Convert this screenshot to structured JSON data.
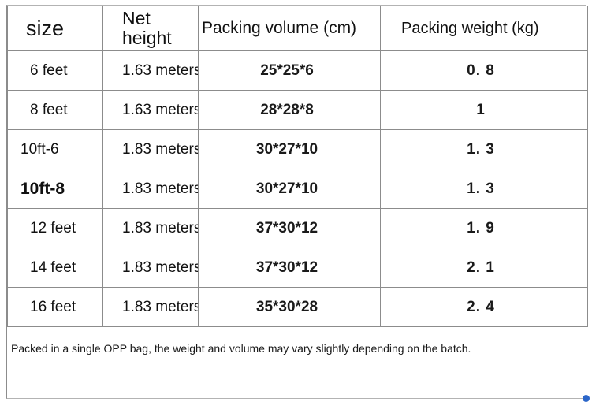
{
  "table": {
    "headers": {
      "size": "size",
      "net_height": "Net height",
      "packing_volume": "Packing volume (cm)",
      "packing_weight": "Packing weight (kg)"
    },
    "rows": [
      {
        "size": "6 feet",
        "net_height": "1.63 meters",
        "volume": "25*25*6",
        "weight": "0. 8"
      },
      {
        "size": "8 feet",
        "net_height": "1.63 meters",
        "volume": "28*28*8",
        "weight": "1"
      },
      {
        "size": "10ft-6",
        "net_height": "1.83 meters",
        "volume": "30*27*10",
        "weight": "1. 3"
      },
      {
        "size": "10ft-8",
        "net_height": "1.83 meters",
        "volume": "30*27*10",
        "weight": "1. 3"
      },
      {
        "size": "12 feet",
        "net_height": "1.83 meters",
        "volume": "37*30*12",
        "weight": "1. 9"
      },
      {
        "size": "14 feet",
        "net_height": "1.83 meters",
        "volume": "37*30*12",
        "weight": "2. 1"
      },
      {
        "size": "16 feet",
        "net_height": "1.83 meters",
        "volume": "35*30*28",
        "weight": "2. 4"
      }
    ]
  },
  "note": "Packed in a single OPP bag, the weight and volume may vary slightly depending on the batch.",
  "colors": {
    "grid": "#8c8c8c",
    "text": "#111111",
    "selection_handle": "#2b66c9"
  }
}
